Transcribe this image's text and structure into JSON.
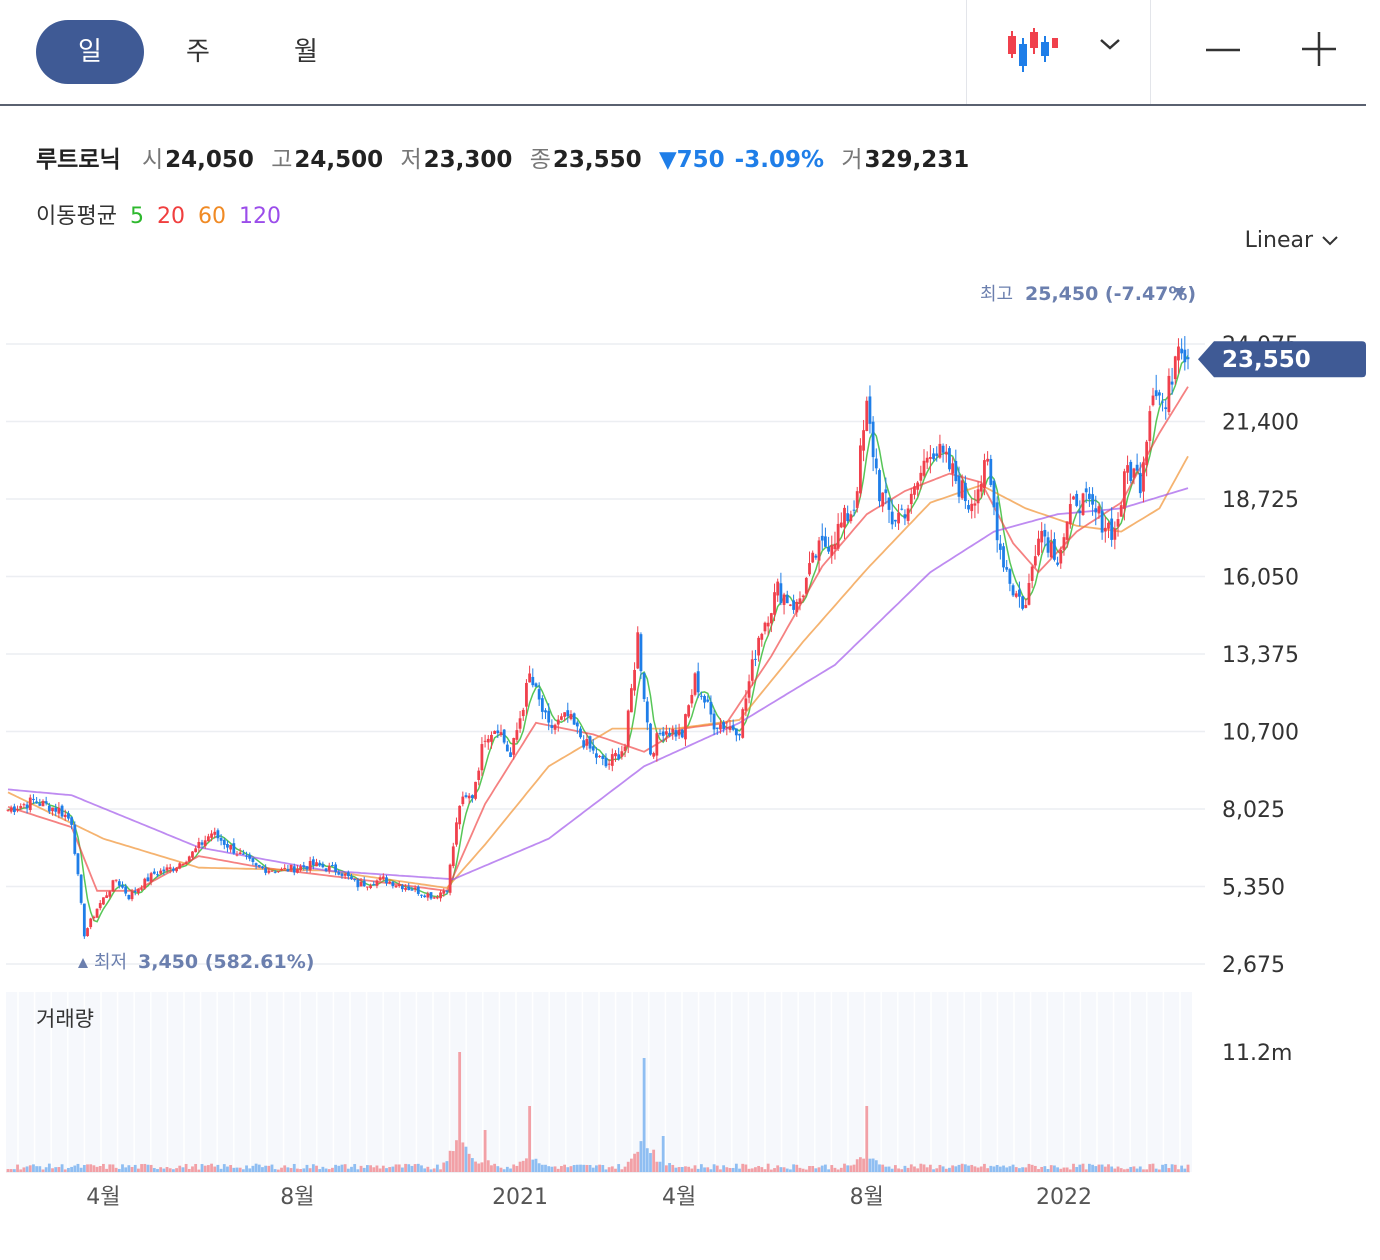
{
  "toolbar": {
    "periods": [
      "일",
      "주",
      "월"
    ],
    "active_period": 0,
    "chart_type_icon": "candlestick-icon",
    "dropdown_icon": "chevron-down-icon",
    "zoom_out_icon": "minus-icon",
    "zoom_in_icon": "plus-icon"
  },
  "stock": {
    "name": "루트로닉",
    "open_label": "시",
    "open": "24,050",
    "high_label": "고",
    "high": "24,500",
    "low_label": "저",
    "low": "23,300",
    "close_label": "종",
    "close": "23,550",
    "change": "▼750",
    "change_pct": "-3.09%",
    "volume_label": "거",
    "volume": "329,231"
  },
  "moving_average": {
    "label": "이동평균",
    "periods": [
      {
        "label": "5",
        "color": "#2db82d"
      },
      {
        "label": "20",
        "color": "#f03e3e"
      },
      {
        "label": "60",
        "color": "#f08a24"
      },
      {
        "label": "120",
        "color": "#9b4dea"
      }
    ]
  },
  "scale_label": "Linear",
  "colors": {
    "up": "#f0404c",
    "down": "#1f7ee8",
    "accent": "#3f5a95"
  },
  "chart_data": {
    "type": "candlestick",
    "y_ticks": [
      "24,075",
      "21,400",
      "18,725",
      "16,050",
      "13,375",
      "10,700",
      "8,025",
      "5,350",
      "2,675"
    ],
    "y_tick_values": [
      24075,
      21400,
      18725,
      16050,
      13375,
      10700,
      8025,
      5350,
      2675
    ],
    "ylim": [
      2675,
      25450
    ],
    "x_ticks": [
      "4월",
      "8월",
      "2021",
      "4월",
      "8월",
      "2022"
    ],
    "current_price": "23,550",
    "current_value": 23550,
    "high_marker": {
      "label": "최고",
      "value_text": "25,450 (-7.47%)",
      "value": 25450
    },
    "low_marker": {
      "label": "최저",
      "value_text": "3,450 (582.61%)",
      "value": 3450
    },
    "price_path": [
      [
        0,
        8000
      ],
      [
        8,
        8300
      ],
      [
        16,
        8000
      ],
      [
        20,
        7600
      ],
      [
        24,
        3700
      ],
      [
        28,
        4600
      ],
      [
        34,
        5600
      ],
      [
        38,
        5000
      ],
      [
        46,
        5800
      ],
      [
        52,
        6000
      ],
      [
        58,
        6500
      ],
      [
        64,
        7200
      ],
      [
        70,
        6700
      ],
      [
        78,
        6000
      ],
      [
        86,
        5900
      ],
      [
        96,
        6100
      ],
      [
        104,
        5900
      ],
      [
        110,
        5400
      ],
      [
        118,
        5600
      ],
      [
        126,
        5300
      ],
      [
        134,
        5000
      ],
      [
        138,
        5300
      ],
      [
        142,
        8200
      ],
      [
        146,
        8500
      ],
      [
        150,
        10600
      ],
      [
        154,
        10900
      ],
      [
        158,
        9800
      ],
      [
        164,
        12600
      ],
      [
        170,
        10800
      ],
      [
        176,
        11200
      ],
      [
        182,
        10200
      ],
      [
        188,
        9500
      ],
      [
        194,
        10200
      ],
      [
        198,
        14000
      ],
      [
        202,
        10000
      ],
      [
        206,
        10800
      ],
      [
        212,
        10600
      ],
      [
        216,
        12500
      ],
      [
        222,
        11000
      ],
      [
        230,
        10800
      ],
      [
        236,
        14000
      ],
      [
        242,
        15600
      ],
      [
        248,
        15000
      ],
      [
        254,
        16800
      ],
      [
        260,
        17500
      ],
      [
        266,
        18500
      ],
      [
        270,
        21800
      ],
      [
        274,
        19000
      ],
      [
        278,
        18000
      ],
      [
        284,
        18600
      ],
      [
        290,
        20600
      ],
      [
        296,
        19800
      ],
      [
        302,
        18600
      ],
      [
        308,
        19800
      ],
      [
        312,
        17000
      ],
      [
        316,
        15600
      ],
      [
        320,
        15000
      ],
      [
        324,
        17800
      ],
      [
        330,
        16800
      ],
      [
        336,
        18800
      ],
      [
        342,
        18200
      ],
      [
        348,
        17600
      ],
      [
        352,
        19800
      ],
      [
        356,
        19400
      ],
      [
        360,
        22800
      ],
      [
        364,
        21800
      ],
      [
        368,
        24500
      ],
      [
        371,
        23550
      ]
    ],
    "ma_paths": [
      {
        "period": "20",
        "points": [
          [
            0,
            8100
          ],
          [
            20,
            7400
          ],
          [
            28,
            5200
          ],
          [
            40,
            5200
          ],
          [
            60,
            6400
          ],
          [
            80,
            6000
          ],
          [
            110,
            5600
          ],
          [
            138,
            5200
          ],
          [
            150,
            8200
          ],
          [
            166,
            11000
          ],
          [
            184,
            10600
          ],
          [
            200,
            10000
          ],
          [
            212,
            10800
          ],
          [
            226,
            11000
          ],
          [
            240,
            13300
          ],
          [
            256,
            16400
          ],
          [
            270,
            18200
          ],
          [
            282,
            19000
          ],
          [
            296,
            19600
          ],
          [
            306,
            19300
          ],
          [
            316,
            17200
          ],
          [
            324,
            16200
          ],
          [
            336,
            17600
          ],
          [
            350,
            18600
          ],
          [
            362,
            21000
          ],
          [
            371,
            22600
          ]
        ]
      },
      {
        "period": "60",
        "points": [
          [
            0,
            8600
          ],
          [
            30,
            7000
          ],
          [
            60,
            6000
          ],
          [
            100,
            5900
          ],
          [
            138,
            5300
          ],
          [
            150,
            6800
          ],
          [
            170,
            9500
          ],
          [
            190,
            10800
          ],
          [
            210,
            10800
          ],
          [
            230,
            11100
          ],
          [
            250,
            13800
          ],
          [
            270,
            16300
          ],
          [
            290,
            18600
          ],
          [
            306,
            19200
          ],
          [
            320,
            18400
          ],
          [
            336,
            17800
          ],
          [
            350,
            17600
          ],
          [
            362,
            18400
          ],
          [
            371,
            20200
          ]
        ]
      },
      {
        "period": "120",
        "points": [
          [
            0,
            8700
          ],
          [
            20,
            8500
          ],
          [
            60,
            6700
          ],
          [
            100,
            5900
          ],
          [
            140,
            5600
          ],
          [
            170,
            7000
          ],
          [
            200,
            9500
          ],
          [
            230,
            11000
          ],
          [
            260,
            13000
          ],
          [
            290,
            16200
          ],
          [
            310,
            17600
          ],
          [
            330,
            18200
          ],
          [
            350,
            18400
          ],
          [
            371,
            19100
          ]
        ]
      }
    ],
    "volume": {
      "label": "거래량",
      "max_label": "11.2m",
      "spikes": [
        [
          142,
          1.0
        ],
        [
          164,
          0.55
        ],
        [
          200,
          0.95
        ],
        [
          270,
          0.55
        ],
        [
          150,
          0.35
        ],
        [
          206,
          0.3
        ]
      ]
    }
  }
}
